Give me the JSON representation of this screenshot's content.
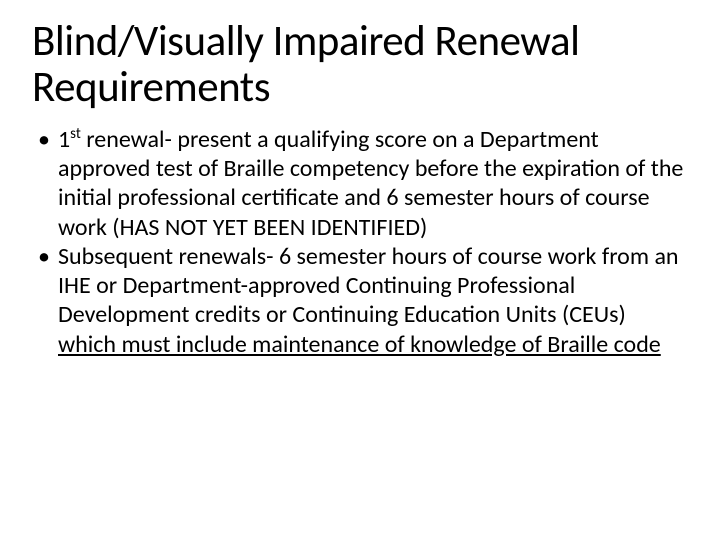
{
  "title": {
    "text": "Blind/Visually Impaired Renewal Requirements",
    "fontsize": 43,
    "color": "#000000"
  },
  "body": {
    "fontsize": 24,
    "color": "#000000",
    "bullets": [
      {
        "prefix": "1",
        "sup": "st",
        "rest": " renewal- present a qualifying score on a Department approved test of Braille competency before the expiration of the initial professional certificate and 6 semester hours of course work (HAS NOT YET BEEN IDENTIFIED)"
      },
      {
        "plain": "Subsequent renewals- 6 semester hours of course work from an IHE or Department-approved Continuing Professional Development credits or Continuing Education Units (CEUs) ",
        "underlined": "which must include maintenance of knowledge of Braille code"
      }
    ]
  },
  "background_color": "#ffffff"
}
